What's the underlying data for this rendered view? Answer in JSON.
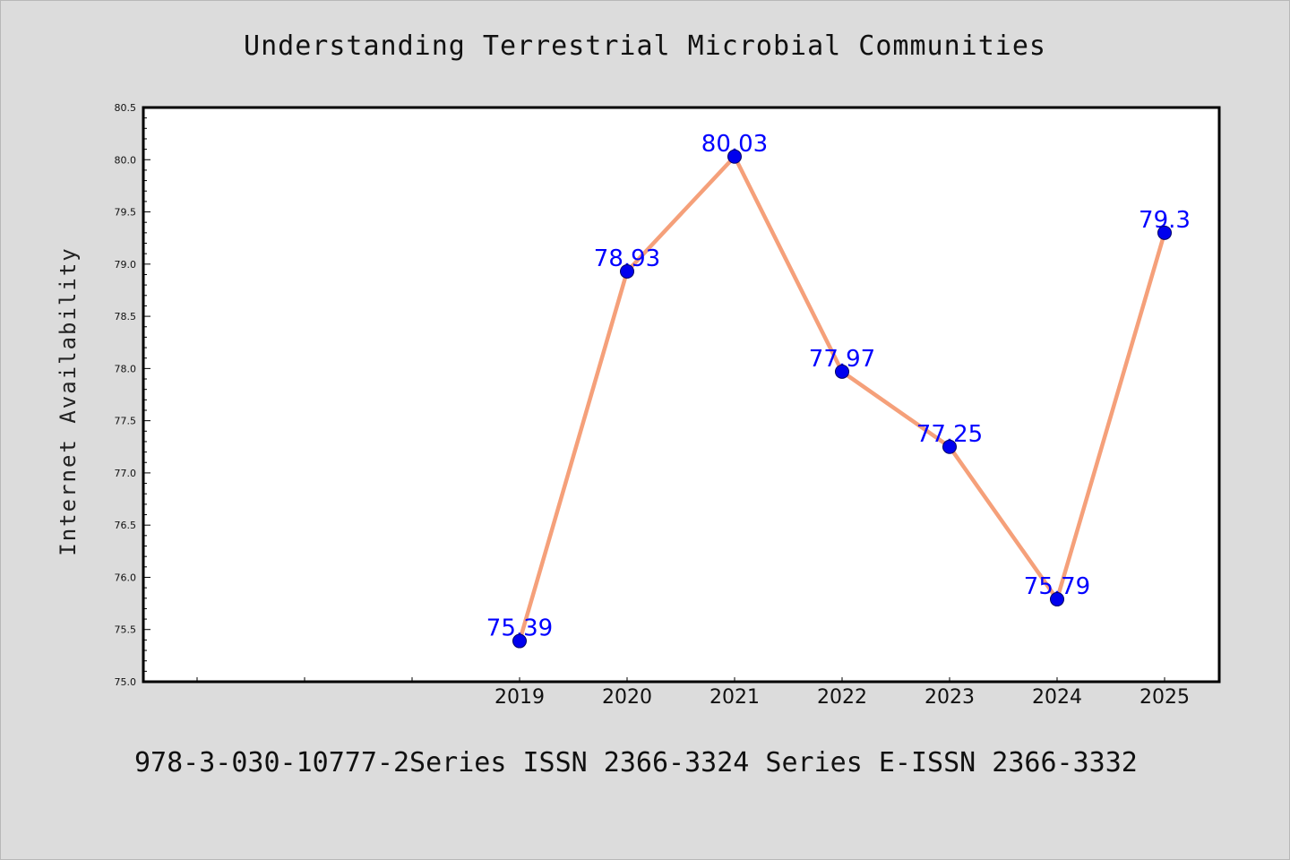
{
  "chart_data": {
    "type": "line",
    "title": "Understanding Terrestrial Microbial Communities",
    "xlabel": "",
    "ylabel": "Internet Availability",
    "categories": [
      "2019",
      "2020",
      "2021",
      "2022",
      "2023",
      "2024",
      "2025"
    ],
    "series": [
      {
        "values": [
          75.39,
          78.93,
          80.03,
          77.97,
          77.25,
          75.79,
          79.3
        ],
        "data_labels": [
          "75.39",
          "78.93",
          "80.03",
          "77.97",
          "77.25",
          "75.79",
          "79.3"
        ]
      }
    ],
    "ylim": [
      75.0,
      80.5
    ],
    "y_ticks": [
      "75.0",
      "75.5",
      "76.0",
      "76.5",
      "77.0",
      "77.5",
      "78.0",
      "78.5",
      "79.0",
      "79.5",
      "80.0",
      "80.5"
    ],
    "x_slots_before_data": 3,
    "grid": false,
    "legend": "none",
    "colors": {
      "line": "#f5a07a",
      "marker": "#0000ee",
      "data_label": "#0000ff",
      "plot_background": "#ffffff",
      "page_background": "#dcdcdc"
    }
  },
  "footer_note": "978-3-030-10777-2Series ISSN 2366-3324 Series E-ISSN 2366-3332"
}
